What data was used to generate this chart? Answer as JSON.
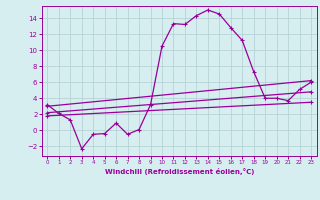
{
  "xlabel": "Windchill (Refroidissement éolien,°C)",
  "background_color": "#d6eef0",
  "grid_color": "#b0cdd0",
  "line_color": "#990099",
  "xlim": [
    -0.5,
    23.5
  ],
  "ylim": [
    -3.2,
    15.5
  ],
  "xticks": [
    0,
    1,
    2,
    3,
    4,
    5,
    6,
    7,
    8,
    9,
    10,
    11,
    12,
    13,
    14,
    15,
    16,
    17,
    18,
    19,
    20,
    21,
    22,
    23
  ],
  "yticks": [
    -2,
    0,
    2,
    4,
    6,
    8,
    10,
    12,
    14
  ],
  "line1_x": [
    0,
    1,
    2,
    3,
    4,
    5,
    6,
    7,
    8,
    9,
    10,
    11,
    12,
    13,
    14,
    15,
    16,
    17,
    18,
    19,
    20,
    21,
    22,
    23
  ],
  "line1_y": [
    3.2,
    2.1,
    1.3,
    -2.3,
    -0.5,
    -0.4,
    0.9,
    -0.5,
    0.1,
    3.2,
    10.5,
    13.3,
    13.2,
    14.3,
    15.0,
    14.5,
    12.8,
    11.2,
    7.3,
    4.0,
    4.0,
    3.7,
    5.1,
    6.0
  ],
  "line2_x": [
    0,
    23
  ],
  "line2_y": [
    3.0,
    6.2
  ],
  "line3_x": [
    0,
    23
  ],
  "line3_y": [
    2.2,
    4.8
  ],
  "line4_x": [
    0,
    23
  ],
  "line4_y": [
    1.8,
    3.5
  ]
}
